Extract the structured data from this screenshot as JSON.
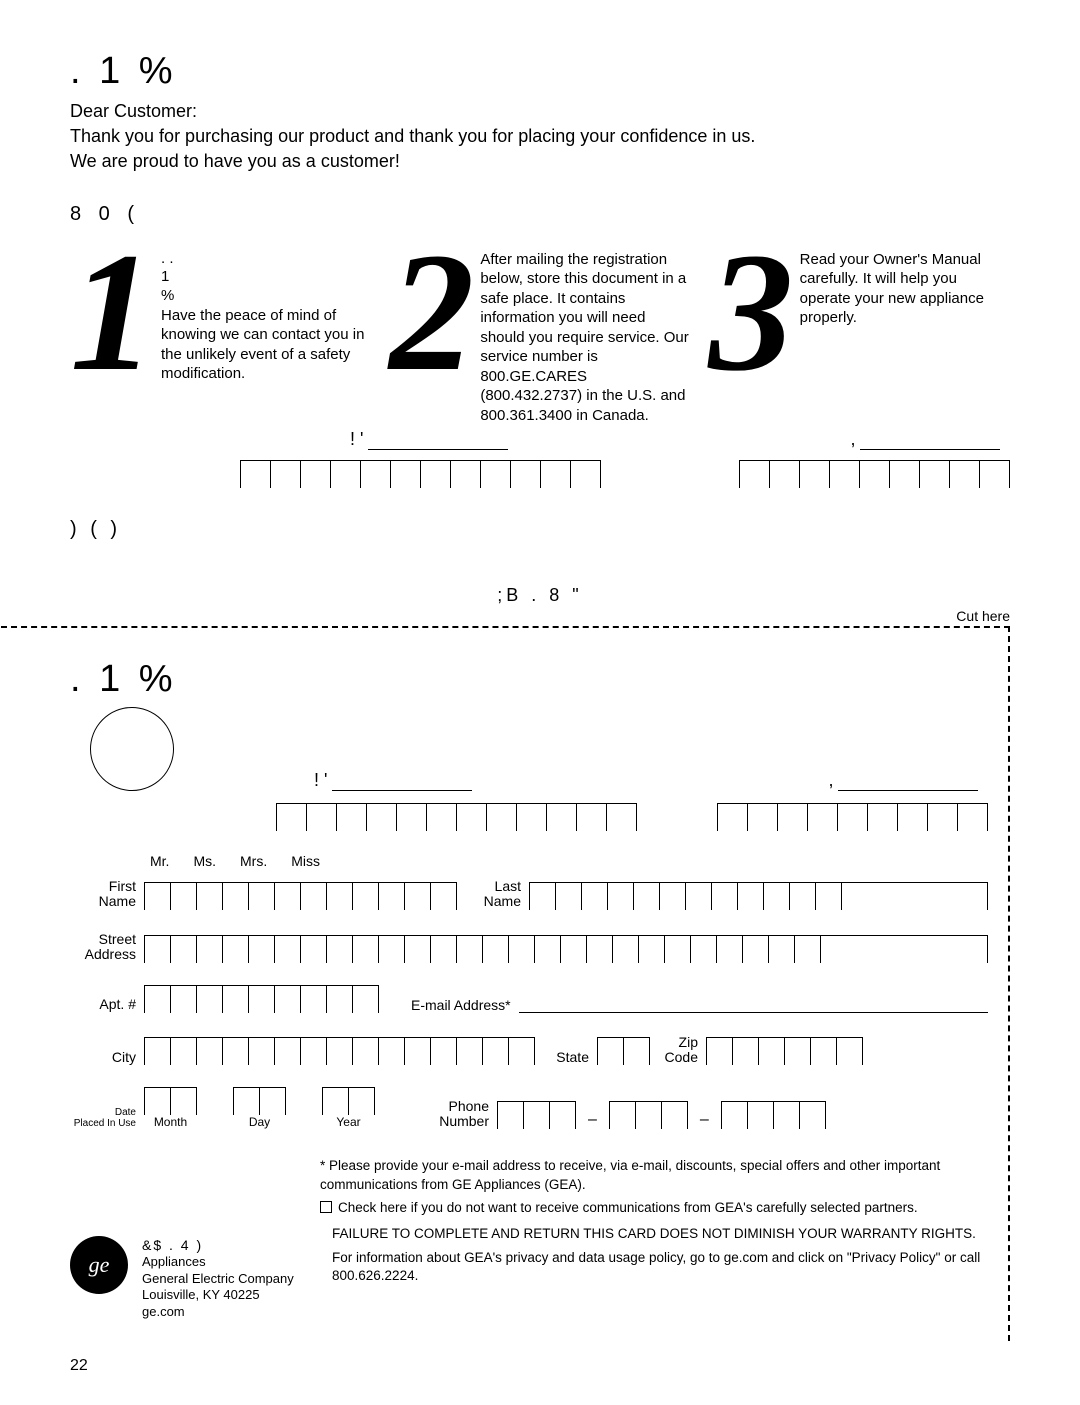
{
  "header": {
    "glyph_line": ".       1                %"
  },
  "greeting": {
    "line1": "Dear Customer:",
    "line2": "Thank you for purchasing our product and thank you for placing your confidence in us.",
    "line3": "We are proud to have you as a customer!"
  },
  "steps_heading": "8                                                     0       (",
  "step1": {
    "num": "1",
    "title_glyphs": ".   .\n1\n%",
    "body": "Have the peace of mind of knowing we can contact you in the unlikely event of a safety modification."
  },
  "step2": {
    "num": "2",
    "body": "After mailing the registration below, store this document in a safe place. It contains information you will need should you require service. Our service number is 800.GE.CARES (800.432.2737) in the U.S. and 800.361.3400 in Canada."
  },
  "step3": {
    "num": "3",
    "body": "Read your Owner's Manual carefully. It will help you operate your new appliance properly."
  },
  "mn_label": "!     '",
  "sn_label": ",",
  "mn_cells": 12,
  "sn_cells": 9,
  "staple_line": ")       (       )",
  "fold_line": ";B     .  8      \"",
  "cut_label": "Cut here",
  "reg_title": ".        1                 %",
  "stamp_text": "",
  "titles": {
    "mr": "Mr.",
    "ms": "Ms.",
    "mrs": "Mrs.",
    "miss": "Miss"
  },
  "form": {
    "first_name": "First Name",
    "last_name": "Last Name",
    "street": "Street Address",
    "apt": "Apt. #",
    "email": "E-mail Address*",
    "city": "City",
    "state": "State",
    "zip": "Zip Code",
    "date": "Date Placed In Use",
    "month": "Month",
    "day": "Day",
    "year": "Year",
    "phone": "Phone Number",
    "first_cells": 12,
    "last_cells": 13,
    "street_cells": 27,
    "apt_cells": 9,
    "city_cells": 15,
    "state_cells": 2,
    "zip_cells": 6,
    "month_cells": 2,
    "day_cells": 2,
    "year_cells": 2,
    "phone_a": 3,
    "phone_b": 3,
    "phone_c": 4
  },
  "footnote": "* Please provide your e-mail address to receive, via e-mail, discounts, special offers and other important communications from GE Appliances (GEA).",
  "optout": "Check here if you do not want to receive communications from GEA's carefully selected partners.",
  "warranty1": "FAILURE TO COMPLETE AND RETURN THIS CARD DOES NOT DIMINISH YOUR WARRANTY RIGHTS.",
  "warranty2": "For information about GEA's privacy and data usage policy, go to ge.com and click on \"Privacy Policy\" or call 800.626.2224.",
  "company": {
    "brand_glyph": "&$ .       4  )",
    "line1": "Appliances",
    "line2": "General Electric Company",
    "line3": "Louisville, KY 40225",
    "line4": "ge.com"
  },
  "page_num": "22"
}
